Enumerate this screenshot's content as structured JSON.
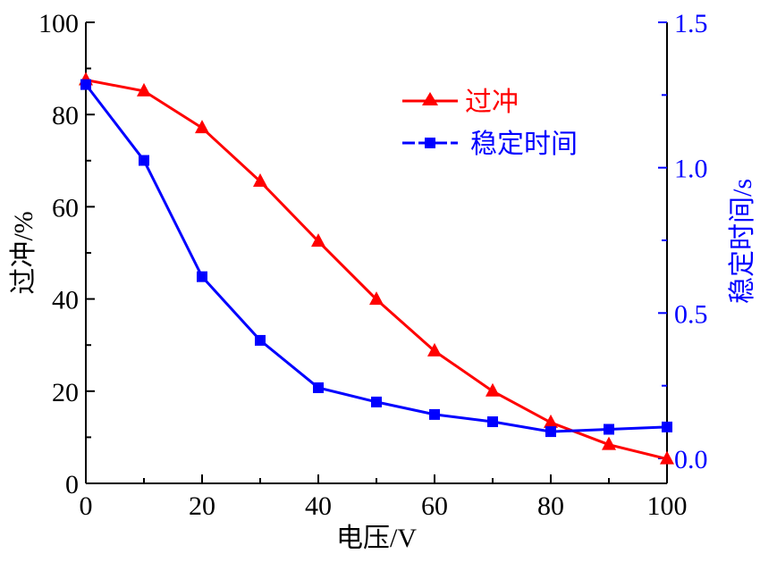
{
  "chart_data": {
    "type": "line",
    "xlabel": "电压/V",
    "ylabel_left": "过冲/%",
    "ylabel_right": "稳定时间/s",
    "xlim": [
      0,
      100
    ],
    "ylim_left": [
      0,
      100
    ],
    "ylim_right": [
      -0.086,
      1.5
    ],
    "x_ticks": [
      "0",
      "20",
      "40",
      "60",
      "80",
      "100"
    ],
    "y_left_ticks": [
      "0",
      "20",
      "40",
      "60",
      "80",
      "100"
    ],
    "y_right_ticks": [
      "0.0",
      "0.5",
      "1.0",
      "1.5"
    ],
    "grid": false,
    "legend_position": "top-center",
    "x": [
      0,
      10,
      20,
      30,
      40,
      50,
      60,
      70,
      80,
      90,
      100
    ],
    "series": [
      {
        "name": "过冲",
        "axis": "left",
        "color": "#ff0000",
        "marker": "triangle",
        "values": [
          87.5,
          85.1,
          77.1,
          65.5,
          52.5,
          39.9,
          28.7,
          20.0,
          13.2,
          8.4,
          5.3
        ]
      },
      {
        "name": "稳定时间",
        "axis": "right",
        "color": "#0000ff",
        "marker": "square",
        "values": [
          1.286,
          1.025,
          0.625,
          0.406,
          0.243,
          0.194,
          0.151,
          0.126,
          0.092,
          0.1,
          0.108
        ]
      }
    ]
  }
}
